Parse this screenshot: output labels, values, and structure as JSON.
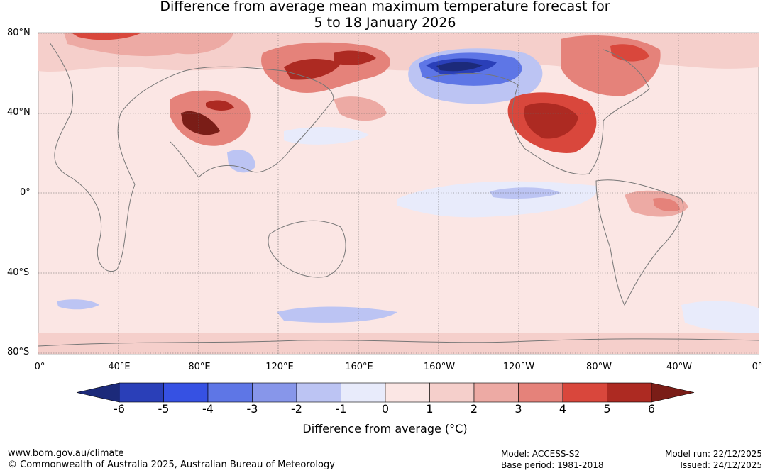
{
  "title_line1": "Difference from average mean maximum temperature forecast for",
  "title_line2": "5 to 18 January 2026",
  "lat_labels": [
    "80°N",
    "40°N",
    "0°",
    "40°S",
    "80°S"
  ],
  "lon_labels": [
    "0°",
    "40°E",
    "80°E",
    "120°E",
    "160°E",
    "160°W",
    "120°W",
    "80°W",
    "40°W",
    "0°"
  ],
  "colorbar": {
    "ticks": [
      "-6",
      "-5",
      "-4",
      "-3",
      "-2",
      "-1",
      "0",
      "1",
      "2",
      "3",
      "4",
      "5",
      "6"
    ],
    "colors": [
      "#1c2a7a",
      "#2a3fb8",
      "#3651e3",
      "#5e76e6",
      "#8796ea",
      "#bcc4f3",
      "#e8ebfb",
      "#fbe6e4",
      "#f5cfcb",
      "#edaaa4",
      "#e5827a",
      "#d9473c",
      "#ad2a22",
      "#7a1d17"
    ],
    "label": "Difference from average (°C)"
  },
  "footer": {
    "url": "www.bom.gov.au/climate",
    "copyright": "© Commonwealth of Australia 2025, Australian Bureau of Meteorology",
    "model": "Model: ACCESS-S2",
    "base_period": "Base period: 1981-2018",
    "model_run": "Model run: 22/12/2025",
    "issued": "Issued: 24/12/2025"
  }
}
